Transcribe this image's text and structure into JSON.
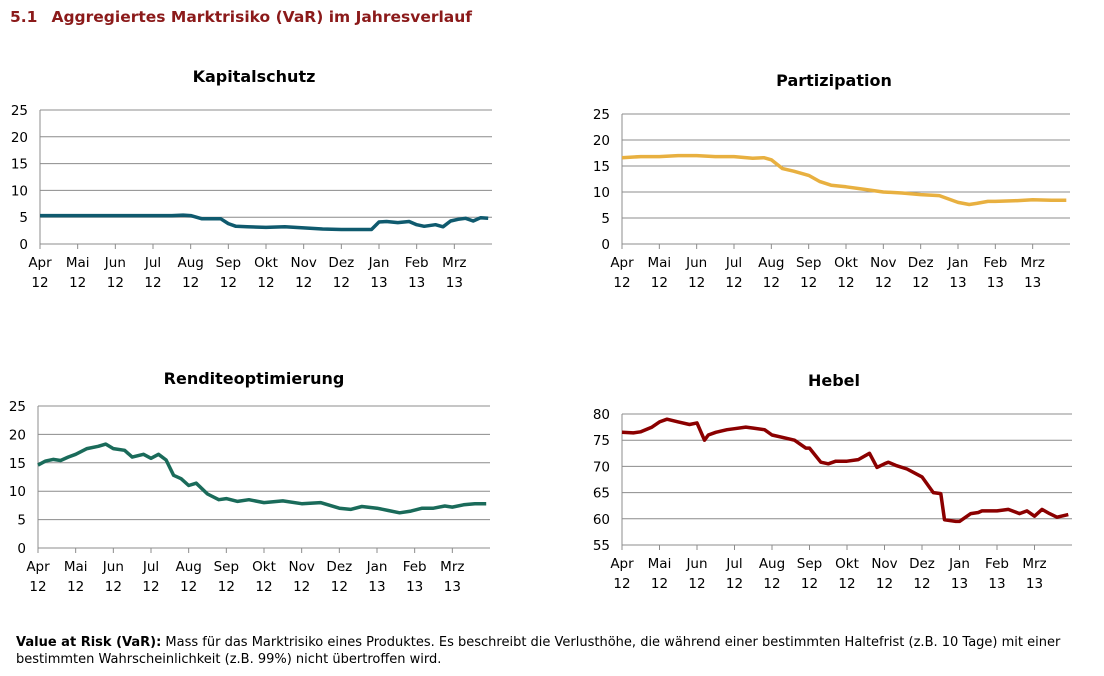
{
  "section": {
    "number": "5.1",
    "title": "Aggregiertes Marktrisiko (VaR) im Jahresverlauf"
  },
  "footnote": {
    "term": "Value at Risk (VaR):",
    "text": "Mass für das Marktrisiko eines Produktes. Es beschreibt die Verlusthöhe, die während einer bestimmten Haltefrist (z.B. 10 Tage) mit einer bestimmten Wahrscheinlichkeit (z.B. 99%) nicht übertroffen wird."
  },
  "chart_data": [
    {
      "type": "line",
      "title": "Kapitalschutz",
      "color": "#0f5a6e",
      "ylim": [
        0,
        25
      ],
      "yticks": [
        0,
        5,
        10,
        15,
        20,
        25
      ],
      "xlabels": [
        [
          "Apr",
          "12"
        ],
        [
          "Mai",
          "12"
        ],
        [
          "Jun",
          "12"
        ],
        [
          "Jul",
          "12"
        ],
        [
          "Aug",
          "12"
        ],
        [
          "Sep",
          "12"
        ],
        [
          "Okt",
          "12"
        ],
        [
          "Nov",
          "12"
        ],
        [
          "Dez",
          "12"
        ],
        [
          "Jan",
          "13"
        ],
        [
          "Feb",
          "13"
        ],
        [
          "Mrz",
          "13"
        ]
      ],
      "series": [
        {
          "name": "Kapitalschutz",
          "x": [
            0,
            0.5,
            1,
            1.5,
            2,
            2.5,
            3,
            3.5,
            3.8,
            4,
            4.3,
            4.8,
            5,
            5.2,
            5.5,
            6,
            6.5,
            7,
            7.5,
            8,
            8.5,
            8.8,
            9,
            9.2,
            9.5,
            9.8,
            10,
            10.2,
            10.5,
            10.7,
            10.9,
            11.1,
            11.3,
            11.5,
            11.7,
            11.9
          ],
          "values": [
            5.3,
            5.3,
            5.3,
            5.3,
            5.3,
            5.3,
            5.3,
            5.3,
            5.4,
            5.3,
            4.7,
            4.7,
            3.8,
            3.3,
            3.2,
            3.1,
            3.2,
            3.0,
            2.8,
            2.7,
            2.7,
            2.7,
            4.1,
            4.2,
            4.0,
            4.2,
            3.6,
            3.3,
            3.6,
            3.2,
            4.3,
            4.6,
            4.8,
            4.3,
            4.9,
            4.8
          ]
        }
      ]
    },
    {
      "type": "line",
      "title": "Partizipation",
      "color": "#e8b040",
      "ylim": [
        0,
        25
      ],
      "yticks": [
        0,
        5,
        10,
        15,
        20,
        25
      ],
      "xlabels": [
        [
          "Apr",
          "12"
        ],
        [
          "Mai",
          "12"
        ],
        [
          "Jun",
          "12"
        ],
        [
          "Jul",
          "12"
        ],
        [
          "Aug",
          "12"
        ],
        [
          "Sep",
          "12"
        ],
        [
          "Okt",
          "12"
        ],
        [
          "Nov",
          "12"
        ],
        [
          "Dez",
          "12"
        ],
        [
          "Jan",
          "13"
        ],
        [
          "Feb",
          "13"
        ],
        [
          "Mrz",
          "13"
        ]
      ],
      "series": [
        {
          "name": "Partizipation",
          "x": [
            0,
            0.5,
            1,
            1.5,
            2,
            2.5,
            3,
            3.5,
            3.8,
            4,
            4.3,
            4.6,
            5,
            5.3,
            5.6,
            6,
            6.5,
            7,
            7.5,
            8,
            8.5,
            9,
            9.3,
            9.5,
            9.8,
            10,
            10.5,
            11,
            11.5,
            11.9
          ],
          "values": [
            16.6,
            16.8,
            16.8,
            17.0,
            17.0,
            16.8,
            16.8,
            16.5,
            16.6,
            16.2,
            14.5,
            14.0,
            13.2,
            12.0,
            11.3,
            11.0,
            10.5,
            10.0,
            9.8,
            9.5,
            9.3,
            8.0,
            7.6,
            7.8,
            8.2,
            8.2,
            8.3,
            8.5,
            8.4,
            8.4
          ]
        }
      ]
    },
    {
      "type": "line",
      "title": "Renditeoptimierung",
      "color": "#1a6b5a",
      "ylim": [
        0,
        25
      ],
      "yticks": [
        0,
        5,
        10,
        15,
        20,
        25
      ],
      "xlabels": [
        [
          "Apr",
          "12"
        ],
        [
          "Mai",
          "12"
        ],
        [
          "Jun",
          "12"
        ],
        [
          "Jul",
          "12"
        ],
        [
          "Aug",
          "12"
        ],
        [
          "Sep",
          "12"
        ],
        [
          "Okt",
          "12"
        ],
        [
          "Nov",
          "12"
        ],
        [
          "Dez",
          "12"
        ],
        [
          "Jan",
          "13"
        ],
        [
          "Feb",
          "13"
        ],
        [
          "Mrz",
          "13"
        ]
      ],
      "series": [
        {
          "name": "Renditeoptimierung",
          "x": [
            0,
            0.2,
            0.4,
            0.6,
            0.8,
            1,
            1.3,
            1.6,
            1.8,
            2,
            2.3,
            2.5,
            2.8,
            3,
            3.2,
            3.4,
            3.6,
            3.8,
            4,
            4.2,
            4.5,
            4.8,
            5,
            5.3,
            5.6,
            6,
            6.5,
            7,
            7.5,
            8,
            8.3,
            8.6,
            9,
            9.3,
            9.6,
            9.9,
            10.2,
            10.5,
            10.8,
            11,
            11.3,
            11.6,
            11.9
          ],
          "values": [
            14.6,
            15.3,
            15.6,
            15.4,
            16.0,
            16.5,
            17.5,
            17.9,
            18.3,
            17.5,
            17.2,
            16.0,
            16.5,
            15.8,
            16.5,
            15.5,
            12.8,
            12.2,
            11.0,
            11.4,
            9.5,
            8.5,
            8.7,
            8.2,
            8.5,
            8.0,
            8.3,
            7.8,
            8.0,
            7.0,
            6.8,
            7.3,
            7.0,
            6.6,
            6.2,
            6.5,
            7.0,
            7.0,
            7.4,
            7.2,
            7.6,
            7.8,
            7.8
          ]
        }
      ]
    },
    {
      "type": "line",
      "title": "Hebel",
      "color": "#8b0000",
      "ylim": [
        55,
        80
      ],
      "yticks": [
        55,
        60,
        65,
        70,
        75,
        80
      ],
      "xlabels": [
        [
          "Apr",
          "12"
        ],
        [
          "Mai",
          "12"
        ],
        [
          "Jun",
          "12"
        ],
        [
          "Jul",
          "12"
        ],
        [
          "Aug",
          "12"
        ],
        [
          "Sep",
          "12"
        ],
        [
          "Okt",
          "12"
        ],
        [
          "Nov",
          "12"
        ],
        [
          "Dez",
          "12"
        ],
        [
          "Jan",
          "13"
        ],
        [
          "Feb",
          "13"
        ],
        [
          "Mrz",
          "13"
        ]
      ],
      "series": [
        {
          "name": "Hebel",
          "x": [
            0,
            0.3,
            0.5,
            0.8,
            1,
            1.2,
            1.5,
            1.8,
            2,
            2.2,
            2.3,
            2.5,
            2.8,
            3,
            3.3,
            3.5,
            3.8,
            4,
            4.3,
            4.6,
            4.9,
            5,
            5.3,
            5.5,
            5.7,
            6,
            6.3,
            6.6,
            6.8,
            7,
            7.1,
            7.3,
            7.6,
            8,
            8.3,
            8.5,
            8.6,
            8.9,
            9,
            9.3,
            9.5,
            9.6,
            10,
            10.3,
            10.6,
            10.8,
            11,
            11.2,
            11.4,
            11.6,
            11.9
          ],
          "values": [
            76.5,
            76.4,
            76.6,
            77.5,
            78.5,
            79.0,
            78.5,
            78.0,
            78.3,
            75.0,
            76.0,
            76.5,
            77.0,
            77.2,
            77.5,
            77.3,
            77.0,
            76.0,
            75.5,
            75.0,
            73.5,
            73.5,
            70.8,
            70.5,
            71.0,
            71.0,
            71.3,
            72.5,
            69.8,
            70.5,
            70.8,
            70.2,
            69.5,
            68.0,
            65.0,
            64.8,
            59.8,
            59.5,
            59.5,
            61.0,
            61.2,
            61.5,
            61.5,
            61.8,
            61.0,
            61.5,
            60.5,
            61.8,
            61.0,
            60.3,
            60.8
          ]
        }
      ]
    }
  ]
}
